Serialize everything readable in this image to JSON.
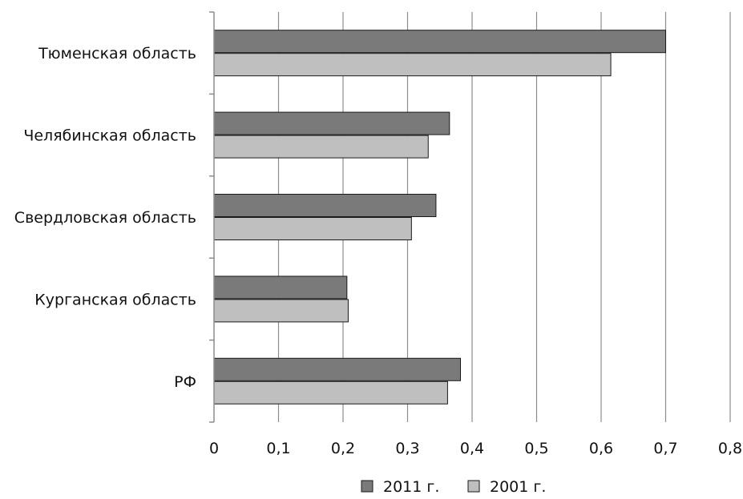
{
  "chart_data": {
    "type": "bar",
    "orientation": "horizontal",
    "title": "",
    "xlabel": "",
    "ylabel": "",
    "categories": [
      "Тюменская область",
      "Челябинская область",
      "Свердловская область",
      "Курганская область",
      "РФ"
    ],
    "series": [
      {
        "name": "2011 г.",
        "color": "#7a7a7a",
        "values": [
          0.7,
          0.365,
          0.344,
          0.206,
          0.382
        ]
      },
      {
        "name": "2001 г.",
        "color": "#bfbfbf",
        "values": [
          0.615,
          0.332,
          0.306,
          0.208,
          0.362
        ]
      }
    ],
    "xlim": [
      0,
      0.8
    ],
    "xticks": [
      "0",
      "0,1",
      "0,2",
      "0,3",
      "0,4",
      "0,5",
      "0,6",
      "0,7",
      "0,8"
    ],
    "xtick_values": [
      0,
      0.1,
      0.2,
      0.3,
      0.4,
      0.5,
      0.6,
      0.7,
      0.8
    ],
    "grid": true,
    "legend": "bottom"
  }
}
